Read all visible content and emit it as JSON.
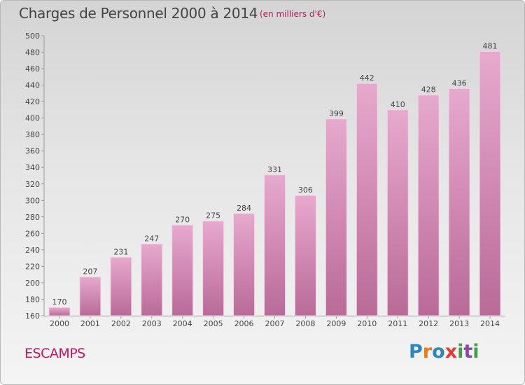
{
  "header": {
    "title": "Charges de Personnel 2000 à 2014",
    "subtitle": "(en milliers d'€)"
  },
  "footer": {
    "commune": "ESCAMPS",
    "logo_text": "Proxiti",
    "logo_letters": [
      {
        "char": "P",
        "color": "#2e86c1"
      },
      {
        "char": "r",
        "color": "#e67e22"
      },
      {
        "char": "o",
        "color": "#2e86c1"
      },
      {
        "char": "x",
        "color": "#e53935"
      },
      {
        "char": "i",
        "color": "#43a047"
      },
      {
        "char": "t",
        "color": "#8e44ad"
      },
      {
        "char": "i",
        "color": "#43a047"
      }
    ]
  },
  "colors": {
    "bar_light": "#e7a9ce",
    "bar_dark": "#b96a98",
    "accent": "#c2185b"
  },
  "chart_data": {
    "type": "bar",
    "title": "Charges de Personnel 2000 à 2014",
    "subtitle": "(en milliers d'€)",
    "xlabel": "",
    "ylabel": "",
    "categories": [
      "2000",
      "2001",
      "2002",
      "2003",
      "2004",
      "2005",
      "2006",
      "2007",
      "2008",
      "2009",
      "2010",
      "2011",
      "2012",
      "2013",
      "2014"
    ],
    "values": [
      170,
      207,
      231,
      247,
      270,
      275,
      284,
      331,
      306,
      399,
      442,
      410,
      428,
      436,
      481
    ],
    "ylim": [
      160,
      500
    ],
    "yticks": [
      160,
      180,
      200,
      220,
      240,
      260,
      280,
      300,
      320,
      340,
      360,
      380,
      400,
      420,
      440,
      460,
      480,
      500
    ],
    "grid": false,
    "legend": "none"
  }
}
